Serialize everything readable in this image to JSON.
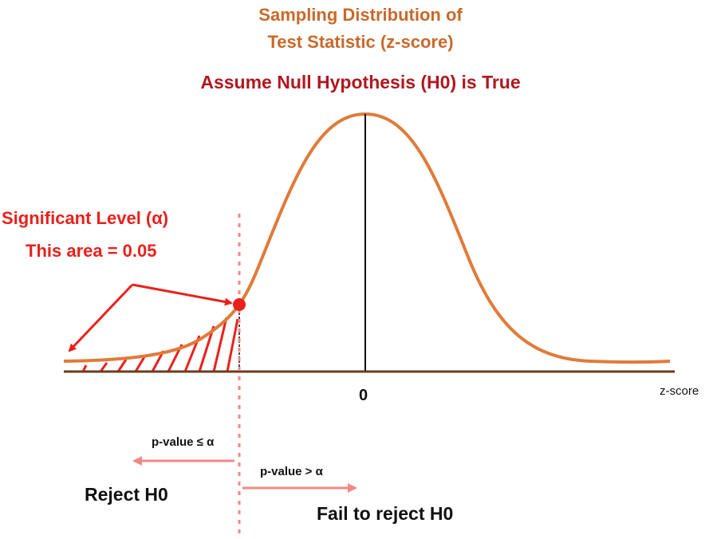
{
  "title": {
    "line1": "Sampling Distribution of",
    "line2": "Test Statistic (z-score)"
  },
  "subtitle": "Assume Null Hypothesis (H0) is True",
  "significance": {
    "line1": "Significant Level (α)",
    "line2": "This area = 0.05"
  },
  "axis": {
    "center_tick": "0",
    "label": "z-score"
  },
  "decision": {
    "left_condition": "p-value ≤ α",
    "left_result": "Reject H0",
    "right_condition": "p-value > α",
    "right_result": "Fail to reject H0"
  },
  "colors": {
    "title": "#c8692b",
    "subtitle": "#b01820",
    "curve": "#e07b39",
    "annotation": "#e8211d",
    "dotted_line": "#f08a85",
    "decision_arrow": "#f08a85",
    "axis": "#6b3b1f"
  }
}
